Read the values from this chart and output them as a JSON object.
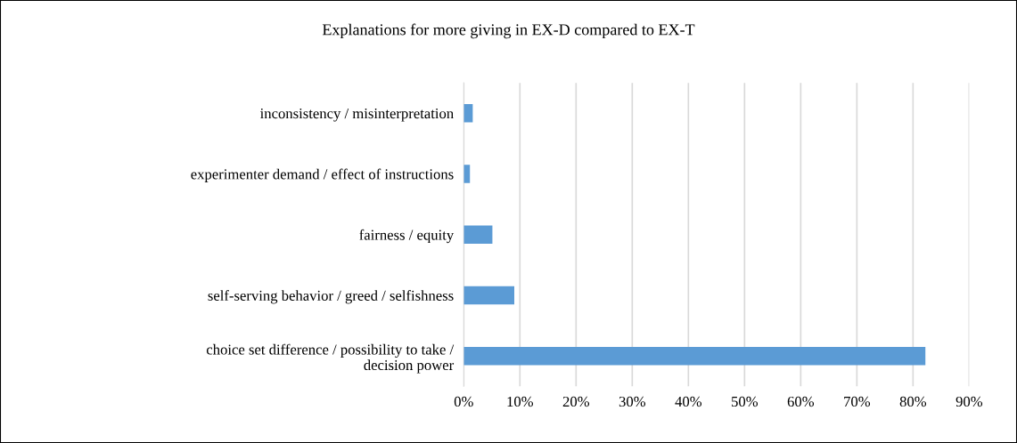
{
  "chart_data": {
    "type": "bar",
    "orientation": "horizontal",
    "title": "Explanations for more giving in EX-D compared to EX-T",
    "categories": [
      "inconsistency / misinterpretation",
      "experimenter demand / effect of instructions",
      "fairness / equity",
      "self-serving behavior / greed / selfishness",
      "choice set difference / possibility to take /\ndecision power"
    ],
    "values": [
      1.6,
      1.1,
      5.1,
      9.0,
      82.2
    ],
    "color": "#5b9bd5",
    "xlim": [
      0,
      90
    ],
    "xticks": [
      {
        "value": 0,
        "label": "0%"
      },
      {
        "value": 10,
        "label": "10%"
      },
      {
        "value": 20,
        "label": "20%"
      },
      {
        "value": 30,
        "label": "30%"
      },
      {
        "value": 40,
        "label": "40%"
      },
      {
        "value": 50,
        "label": "50%"
      },
      {
        "value": 60,
        "label": "60%"
      },
      {
        "value": 70,
        "label": "70%"
      },
      {
        "value": 80,
        "label": "80%"
      },
      {
        "value": 90,
        "label": "90%"
      }
    ],
    "grid": "x",
    "legend": false
  }
}
